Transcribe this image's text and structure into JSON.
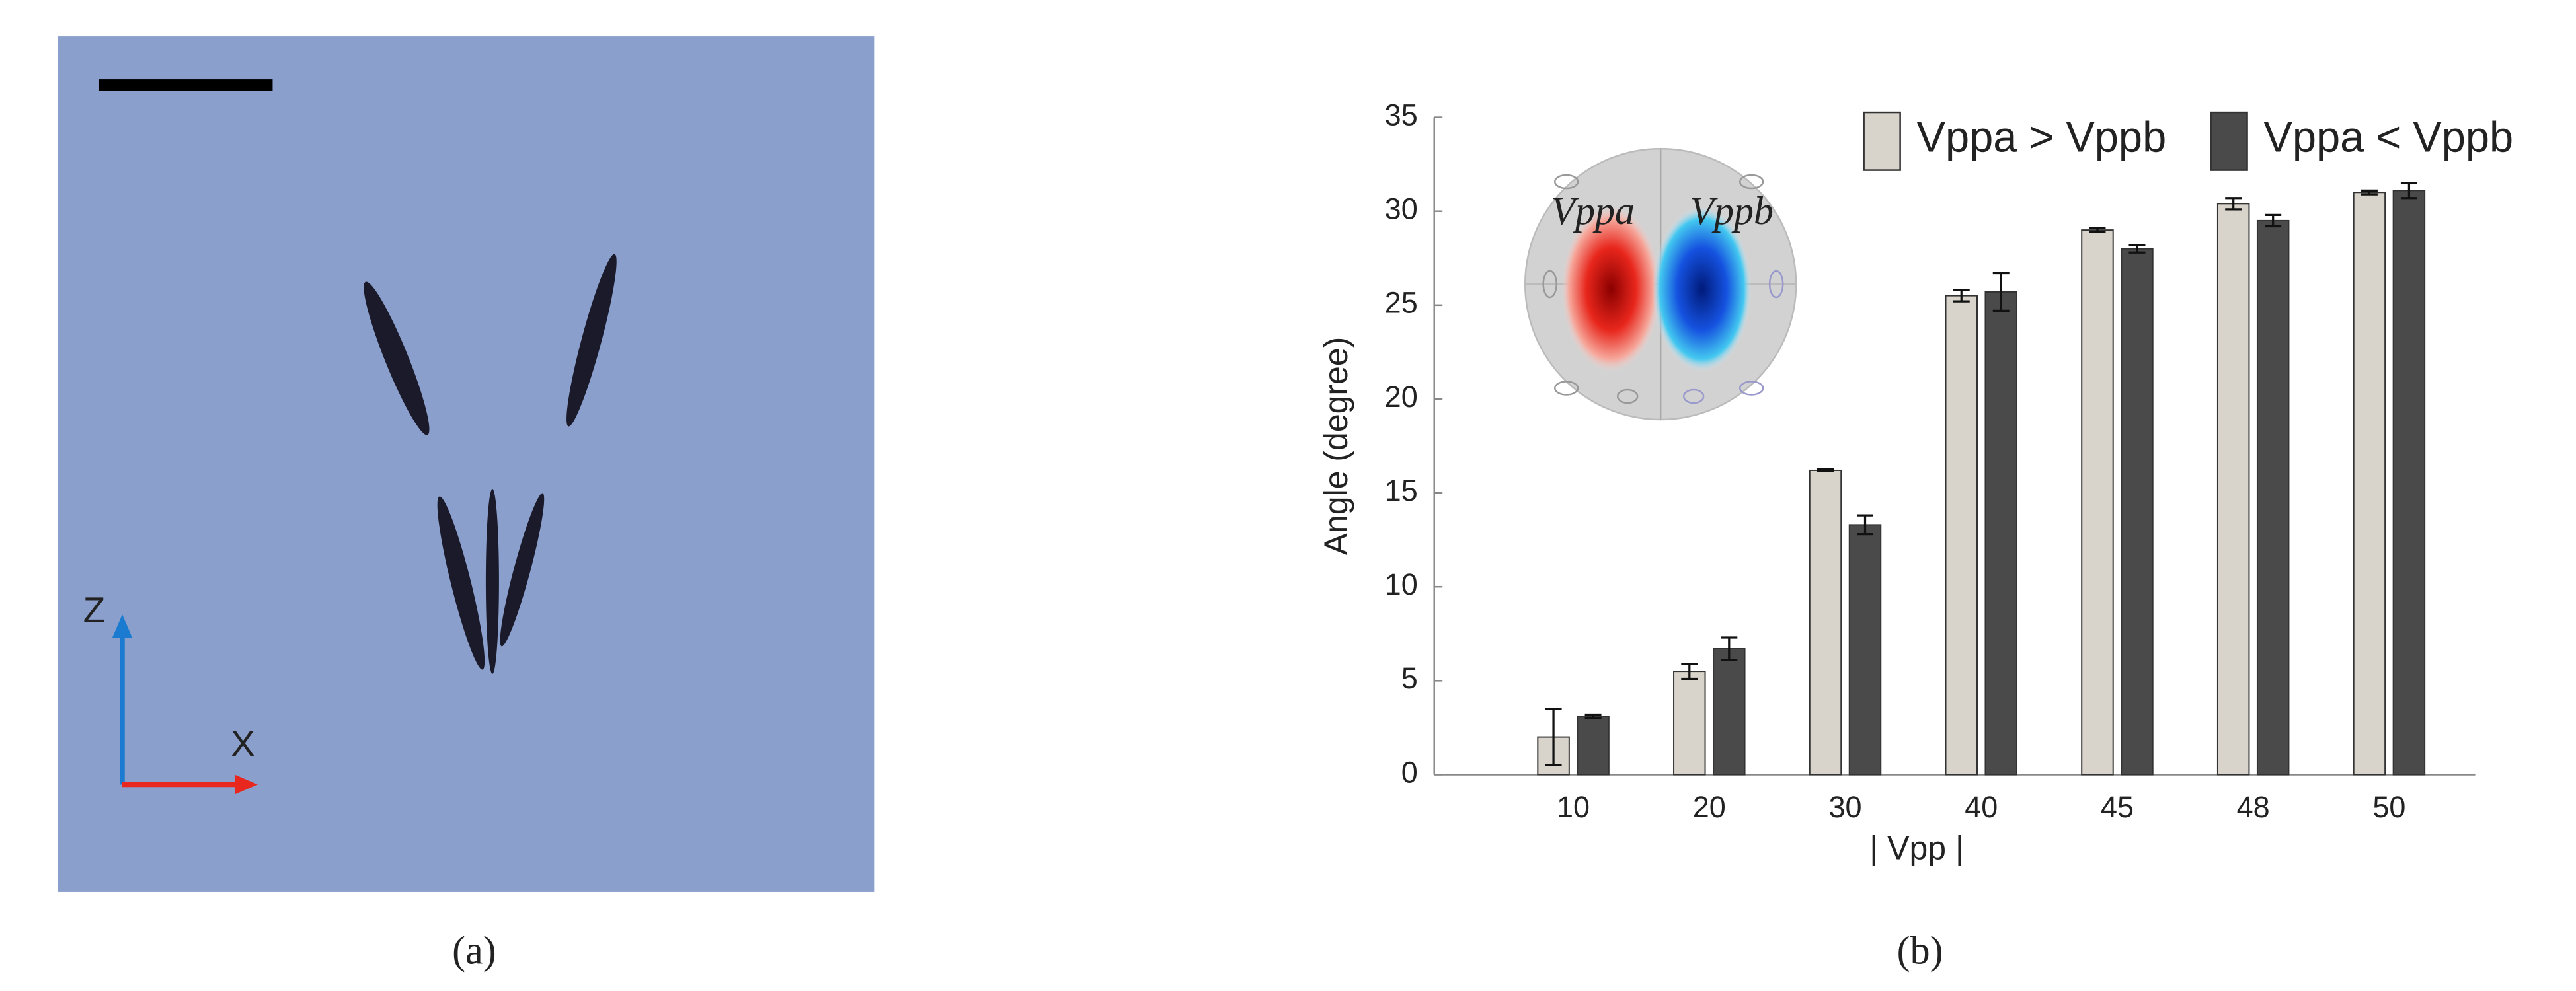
{
  "panel_a": {
    "label": "(a)",
    "axis_z": "Z",
    "axis_x": "X"
  },
  "panel_b": {
    "label": "(b)",
    "inset_left": "Vppa",
    "inset_right": "Vppb"
  },
  "chart_data": {
    "type": "bar",
    "xlabel": "| Vpp |",
    "ylabel": "Angle (degree)",
    "categories": [
      "10",
      "20",
      "30",
      "40",
      "45",
      "48",
      "50"
    ],
    "series": [
      {
        "name": "Vppa > Vppb",
        "color": "#d9d4cb",
        "values": [
          2,
          5.5,
          16.2,
          25.5,
          29,
          30.4,
          31
        ],
        "errors": [
          1.5,
          0.4,
          0.05,
          0.3,
          0.1,
          0.3,
          0.1
        ]
      },
      {
        "name": "Vppa < Vppb",
        "color": "#4a4a4a",
        "values": [
          3.1,
          6.7,
          13.3,
          25.7,
          28,
          29.5,
          31.1
        ],
        "errors": [
          0.1,
          0.6,
          0.5,
          1,
          0.2,
          0.3,
          0.4
        ]
      }
    ],
    "ylim": [
      0,
      35
    ],
    "yticks": [
      0,
      5,
      10,
      15,
      20,
      25,
      30,
      35
    ],
    "grid": false
  }
}
